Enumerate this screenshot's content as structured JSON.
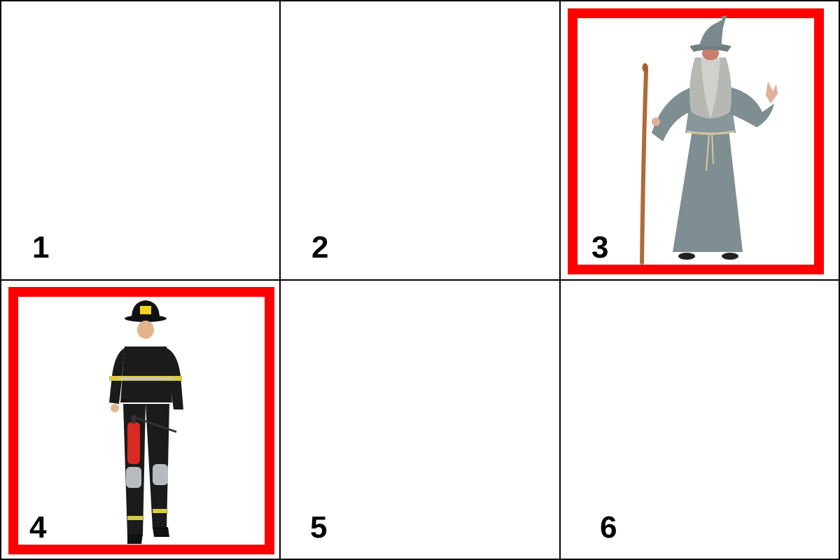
{
  "tiles": [
    {
      "label": "1",
      "selected": false,
      "image": "none"
    },
    {
      "label": "2",
      "selected": false,
      "image": "none"
    },
    {
      "label": "3",
      "selected": true,
      "image": "wizard-costume"
    },
    {
      "label": "4",
      "selected": true,
      "image": "firefighter-costume"
    },
    {
      "label": "5",
      "selected": false,
      "image": "none"
    },
    {
      "label": "6",
      "selected": false,
      "image": "none"
    }
  ],
  "colors": {
    "selection_border": "#ff0000",
    "grid_line": "#000000",
    "background": "#ffffff"
  }
}
